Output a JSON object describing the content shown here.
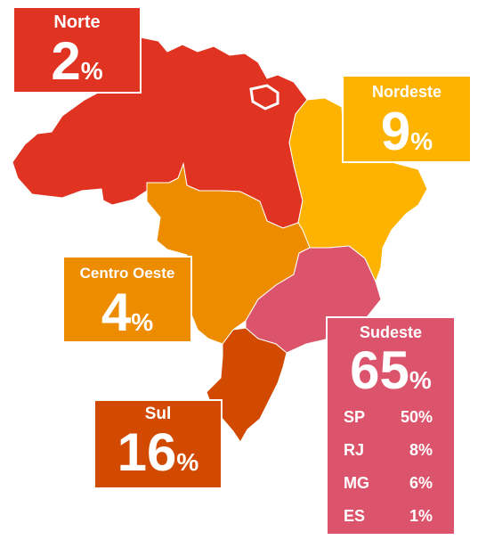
{
  "colors": {
    "norte": "#e03322",
    "nordeste": "#fdb300",
    "centro_oeste": "#ee8c00",
    "sudeste": "#dc546c",
    "sul": "#d14a00"
  },
  "regions": {
    "norte": {
      "name": "Norte",
      "value": "2",
      "unit": "%"
    },
    "nordeste": {
      "name": "Nordeste",
      "value": "9",
      "unit": "%"
    },
    "centro_oeste": {
      "name": "Centro Oeste",
      "value": "4",
      "unit": "%"
    },
    "sul": {
      "name": "Sul",
      "value": "16",
      "unit": "%"
    },
    "sudeste": {
      "name": "Sudeste",
      "value": "65",
      "unit": "%",
      "states": [
        {
          "code": "SP",
          "pct": "50%"
        },
        {
          "code": "RJ",
          "pct": "8%"
        },
        {
          "code": "MG",
          "pct": "6%"
        },
        {
          "code": "ES",
          "pct": "1%"
        }
      ]
    }
  }
}
